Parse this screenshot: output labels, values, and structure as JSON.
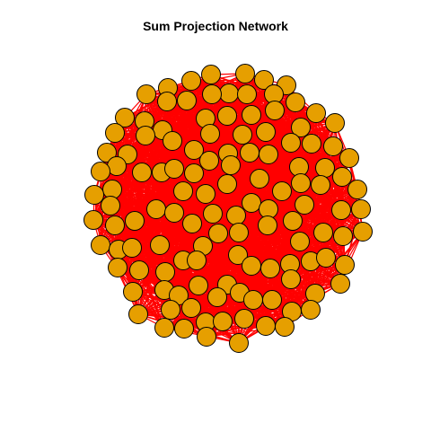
{
  "title": "Sum Projection Network",
  "colors": {
    "edge": "#ff0000",
    "node_fill": "#e69f00",
    "node_stroke": "#000000"
  },
  "network": {
    "type": "graph",
    "node_count": 124,
    "edges_rendered_as": "dense red mesh"
  }
}
